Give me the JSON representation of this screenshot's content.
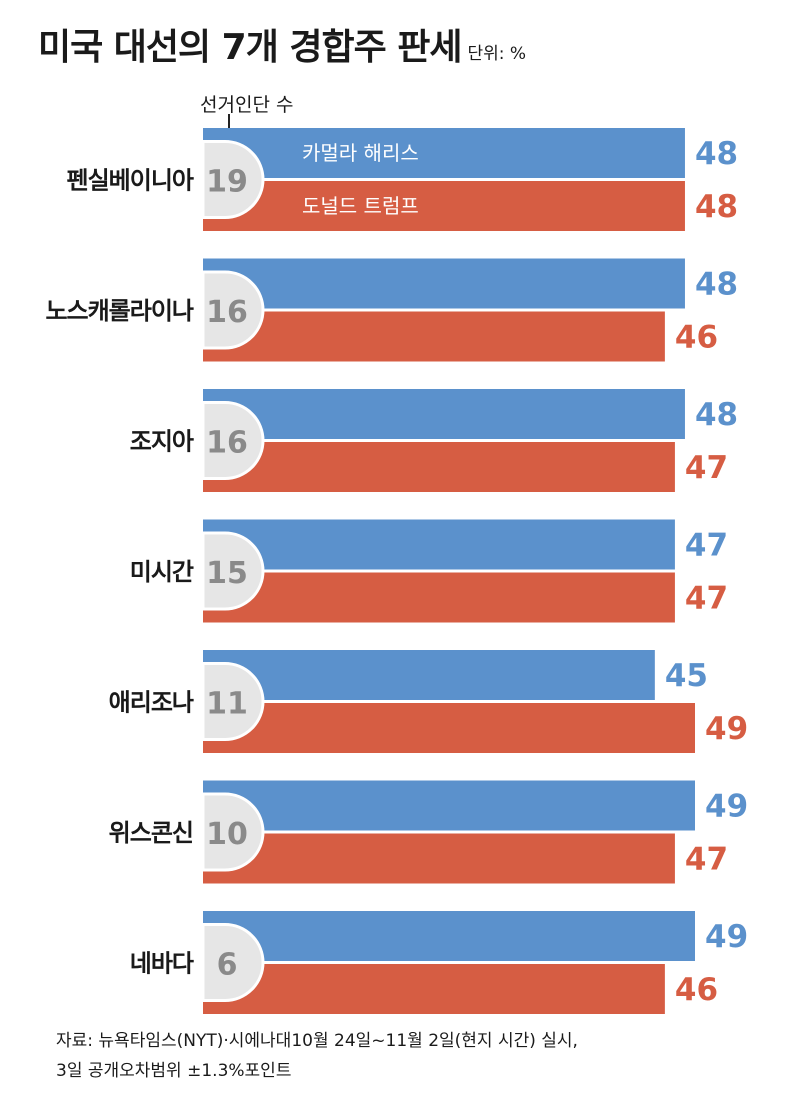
{
  "header": {
    "title": "미국 대선의 7개 경합주 판세",
    "unit": "단위: %"
  },
  "chart_data": {
    "type": "bar",
    "title": "미국 대선의 7개 경합주 판세",
    "unit_label": "단위: %",
    "electoral_votes_label": "선거인단 수",
    "categories": [
      "펜실베이니아",
      "노스캐롤라이나",
      "조지아",
      "미시간",
      "애리조나",
      "위스콘신",
      "네바다"
    ],
    "electoral_votes": [
      "19",
      "16",
      "16",
      "15",
      "11",
      "10",
      "6"
    ],
    "series": [
      {
        "name": "카멀라 해리스",
        "color": "#5b91cc",
        "values": [
          48,
          48,
          48,
          47,
          45,
          49,
          49
        ]
      },
      {
        "name": "도널드 트럼프",
        "color": "#d65d43",
        "values": [
          48,
          46,
          47,
          47,
          49,
          47,
          46
        ]
      }
    ],
    "xlim": [
      0,
      49
    ]
  },
  "footer": {
    "source_line1": "자료: 뉴욕타임스(NYT)·시에나대10월 24일~11월 2일(현지 시간) 실시,",
    "source_line2": "3일 공개오차범위 ±1.3%포인트"
  }
}
